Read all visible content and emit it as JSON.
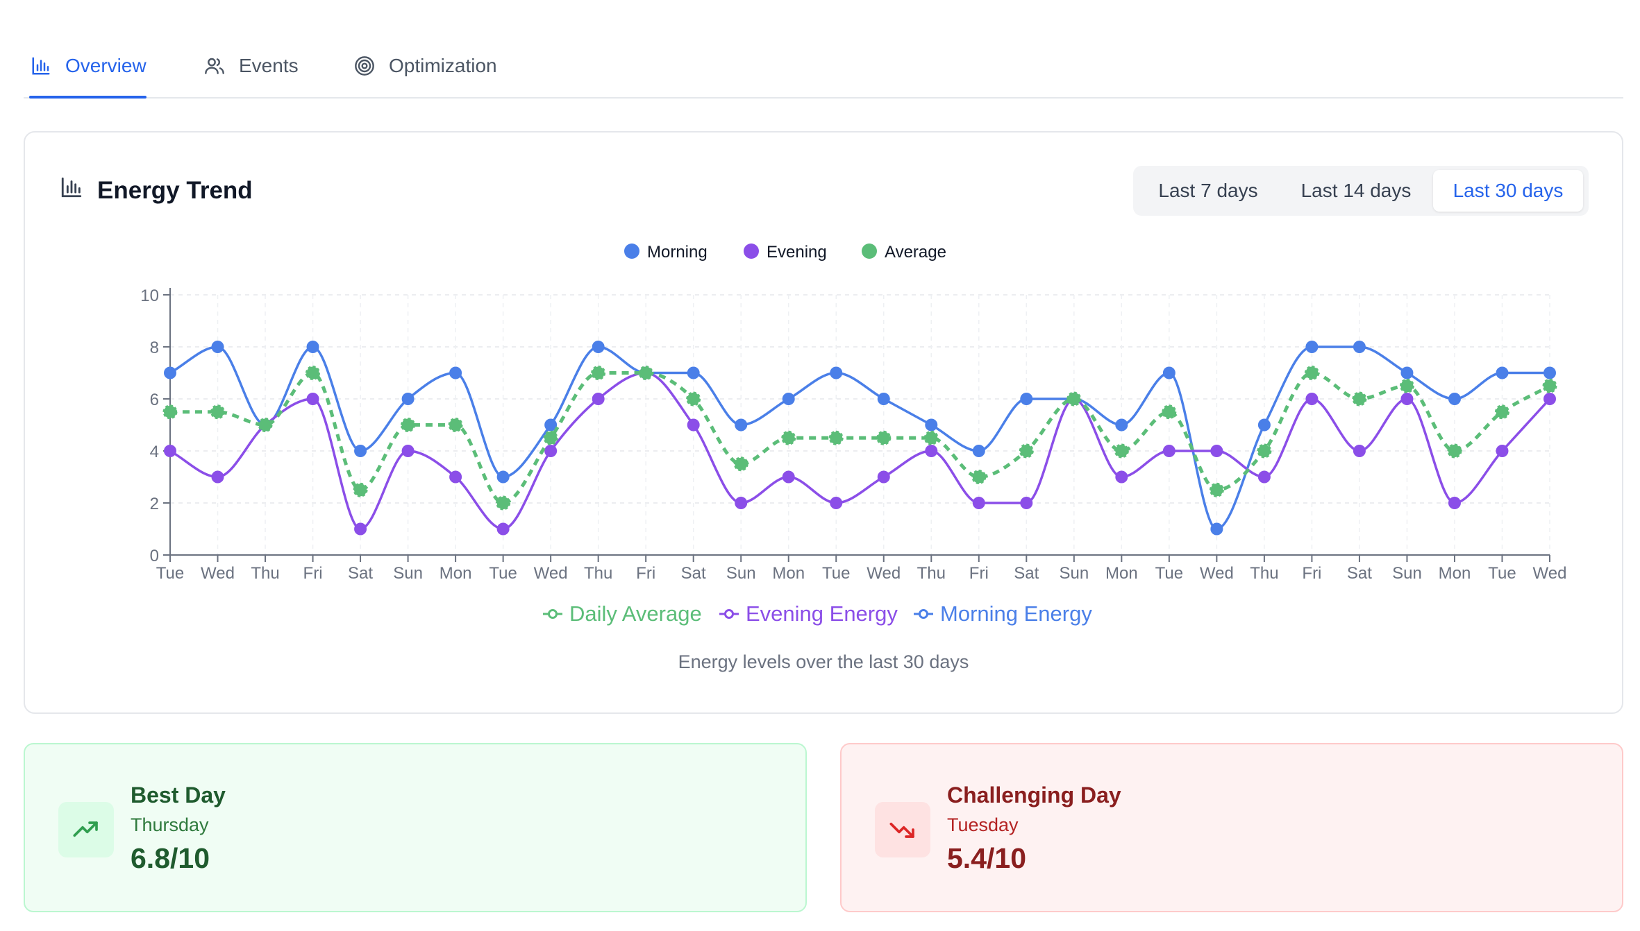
{
  "tabs": [
    {
      "label": "Overview",
      "icon": "bar-chart-icon",
      "active": true
    },
    {
      "label": "Events",
      "icon": "users-icon",
      "active": false
    },
    {
      "label": "Optimization",
      "icon": "target-icon",
      "active": false
    }
  ],
  "card": {
    "title": "Energy Trend",
    "title_icon": "bar-chart-icon",
    "ranges": [
      "Last 7 days",
      "Last 14 days",
      "Last 30 days"
    ],
    "active_range": "Last 30 days",
    "caption": "Energy levels over the last 30 days"
  },
  "chart_data": {
    "type": "line",
    "x": [
      "Tue",
      "Wed",
      "Thu",
      "Fri",
      "Sat",
      "Sun",
      "Mon",
      "Tue",
      "Wed",
      "Thu",
      "Fri",
      "Sat",
      "Sun",
      "Mon",
      "Tue",
      "Wed",
      "Thu",
      "Fri",
      "Sat",
      "Sun",
      "Mon",
      "Tue",
      "Wed",
      "Thu",
      "Fri",
      "Sat",
      "Sun",
      "Mon",
      "Tue",
      "Wed"
    ],
    "series": [
      {
        "name": "Morning",
        "key": "morning",
        "line_label": "Morning Energy",
        "color": "#4a7fe8",
        "dashed": false,
        "values": [
          7,
          8,
          5,
          8,
          4,
          6,
          7,
          3,
          5,
          8,
          7,
          7,
          5,
          6,
          7,
          6,
          5,
          4,
          6,
          6,
          5,
          7,
          1,
          5,
          8,
          8,
          7,
          6,
          7,
          7
        ]
      },
      {
        "name": "Evening",
        "key": "evening",
        "line_label": "Evening Energy",
        "color": "#8b4ee8",
        "dashed": false,
        "values": [
          4,
          3,
          5,
          6,
          1,
          4,
          3,
          1,
          4,
          6,
          7,
          5,
          2,
          3,
          2,
          3,
          4,
          2,
          2,
          6,
          3,
          4,
          4,
          3,
          6,
          4,
          6,
          2,
          4,
          6
        ]
      },
      {
        "name": "Average",
        "key": "average",
        "line_label": "Daily Average",
        "color": "#5bbd78",
        "dashed": true,
        "values": [
          5.5,
          5.5,
          5,
          7,
          2.5,
          5,
          5,
          2,
          4.5,
          7,
          7,
          6,
          3.5,
          4.5,
          4.5,
          4.5,
          4.5,
          3,
          4,
          6,
          4,
          5.5,
          2.5,
          4,
          7,
          6,
          6.5,
          4,
          5.5,
          6.5
        ]
      }
    ],
    "legend_top": [
      "Morning",
      "Evening",
      "Average"
    ],
    "legend_bottom": [
      "Daily Average",
      "Evening Energy",
      "Morning Energy"
    ],
    "ylim": [
      0,
      10
    ],
    "yticks": [
      0,
      2,
      4,
      6,
      8,
      10
    ],
    "grid": true,
    "xlabel": "",
    "ylabel": ""
  },
  "best": {
    "title": "Best Day",
    "day": "Thursday",
    "value": "6.8/10",
    "icon": "trending-up-icon",
    "color": "#2f9e4f"
  },
  "worst": {
    "title": "Challenging Day",
    "day": "Tuesday",
    "value": "5.4/10",
    "icon": "trending-down-icon",
    "color": "#dc2626"
  }
}
